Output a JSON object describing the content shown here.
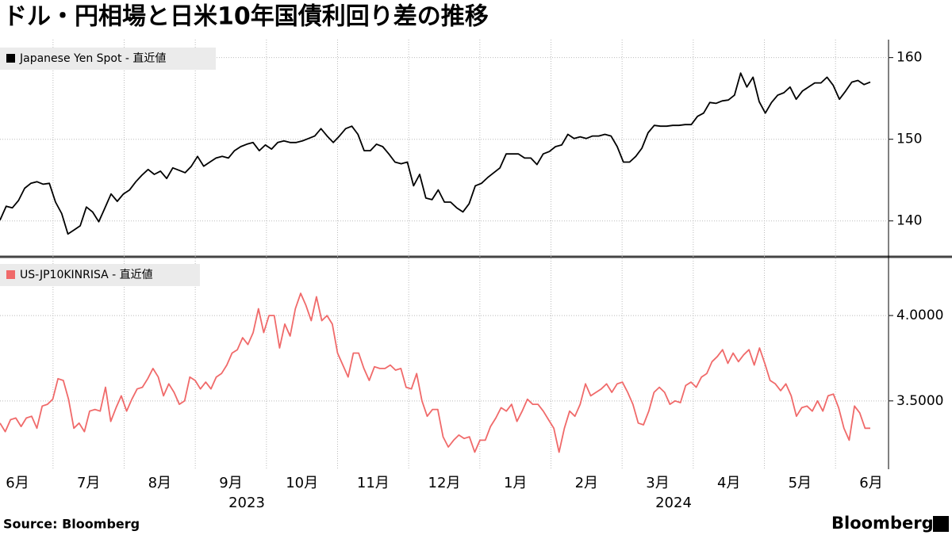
{
  "title": "ドル・円相場と日米10年国債利回り差の推移",
  "source": "Source:  Bloomberg",
  "brand": "Bloomberg",
  "x_labels": [
    "6月",
    "7月",
    "8月",
    "9月",
    "10月",
    "11月",
    "12月",
    "1月",
    "2月",
    "3月",
    "4月",
    "5月",
    "6月"
  ],
  "x_year_labels": [
    "2023",
    "2024"
  ],
  "chart_data": [
    {
      "type": "line",
      "grid": true,
      "ylim": [
        135.8,
        162.2
      ],
      "yticks": [
        140,
        150,
        160
      ],
      "series": [
        {
          "name": "Japanese Yen Spot - 直近値",
          "color": "#000000",
          "values": [
            140.1,
            141.8,
            141.6,
            142.5,
            144,
            144.6,
            144.8,
            144.5,
            144.6,
            142.3,
            140.9,
            138.4,
            138.9,
            139.4,
            141.7,
            141.1,
            139.9,
            141.6,
            143.3,
            142.4,
            143.3,
            143.8,
            144.8,
            145.6,
            146.3,
            145.7,
            146.1,
            145.2,
            146.5,
            146.2,
            145.9,
            146.7,
            147.9,
            146.7,
            147.2,
            147.7,
            147.9,
            147.7,
            148.6,
            149.1,
            149.4,
            149.6,
            148.6,
            149.3,
            148.8,
            149.6,
            149.8,
            149.6,
            149.6,
            149.8,
            150.1,
            150.4,
            151.3,
            150.4,
            149.6,
            150.4,
            151.3,
            151.6,
            150.6,
            148.6,
            148.6,
            149.4,
            149.1,
            148.2,
            147.2,
            147,
            147.2,
            144.3,
            145.7,
            142.8,
            142.6,
            143.8,
            142.3,
            142.3,
            141.6,
            141.1,
            142.1,
            144.3,
            144.6,
            145.3,
            145.9,
            146.5,
            148.2,
            148.2,
            148.2,
            147.7,
            147.7,
            146.9,
            148.2,
            148.5,
            149.1,
            149.3,
            150.6,
            150.1,
            150.3,
            150.1,
            150.4,
            150.4,
            150.6,
            150.4,
            149.1,
            147.2,
            147.2,
            147.9,
            148.9,
            150.8,
            151.7,
            151.6,
            151.6,
            151.7,
            151.7,
            151.8,
            151.8,
            152.8,
            153.2,
            154.5,
            154.4,
            154.7,
            154.8,
            155.4,
            158.1,
            156.4,
            157.6,
            154.6,
            153.2,
            154.5,
            155.4,
            155.7,
            156.4,
            154.9,
            155.9,
            156.4,
            156.9,
            156.9,
            157.6,
            156.6,
            154.9,
            155.9,
            157,
            157.2,
            156.7,
            157
          ]
        }
      ]
    },
    {
      "type": "line",
      "grid": true,
      "ylim": [
        3.1,
        4.33
      ],
      "yticks": [
        {
          "value": 3.5,
          "label": "3.5000"
        },
        {
          "value": 4,
          "label": "4.0000"
        }
      ],
      "series": [
        {
          "name": "US-JP10KINRISA - 直近値",
          "color": "#f06a6a",
          "values": [
            3.37,
            3.32,
            3.39,
            3.4,
            3.35,
            3.4,
            3.41,
            3.34,
            3.47,
            3.48,
            3.51,
            3.63,
            3.62,
            3.51,
            3.34,
            3.37,
            3.32,
            3.44,
            3.45,
            3.44,
            3.58,
            3.38,
            3.46,
            3.53,
            3.44,
            3.51,
            3.57,
            3.58,
            3.63,
            3.69,
            3.64,
            3.53,
            3.6,
            3.55,
            3.48,
            3.5,
            3.64,
            3.62,
            3.57,
            3.61,
            3.57,
            3.64,
            3.66,
            3.71,
            3.78,
            3.8,
            3.87,
            3.83,
            3.9,
            4.04,
            3.9,
            4,
            4,
            3.81,
            3.95,
            3.88,
            4.04,
            4.13,
            4.06,
            3.97,
            4.11,
            3.97,
            4,
            3.95,
            3.78,
            3.71,
            3.64,
            3.78,
            3.78,
            3.69,
            3.62,
            3.7,
            3.69,
            3.69,
            3.71,
            3.68,
            3.69,
            3.58,
            3.57,
            3.66,
            3.5,
            3.41,
            3.45,
            3.45,
            3.29,
            3.23,
            3.27,
            3.3,
            3.28,
            3.29,
            3.2,
            3.27,
            3.27,
            3.35,
            3.4,
            3.46,
            3.44,
            3.48,
            3.38,
            3.44,
            3.51,
            3.48,
            3.48,
            3.44,
            3.39,
            3.34,
            3.2,
            3.34,
            3.44,
            3.41,
            3.48,
            3.6,
            3.53,
            3.55,
            3.57,
            3.6,
            3.55,
            3.6,
            3.61,
            3.55,
            3.48,
            3.37,
            3.36,
            3.44,
            3.55,
            3.58,
            3.55,
            3.48,
            3.5,
            3.49,
            3.59,
            3.61,
            3.58,
            3.64,
            3.66,
            3.73,
            3.76,
            3.8,
            3.72,
            3.78,
            3.73,
            3.77,
            3.8,
            3.71,
            3.81,
            3.72,
            3.62,
            3.6,
            3.56,
            3.6,
            3.53,
            3.41,
            3.46,
            3.47,
            3.44,
            3.5,
            3.44,
            3.53,
            3.54,
            3.46,
            3.34,
            3.27,
            3.47,
            3.43,
            3.34,
            3.34
          ]
        }
      ]
    }
  ]
}
